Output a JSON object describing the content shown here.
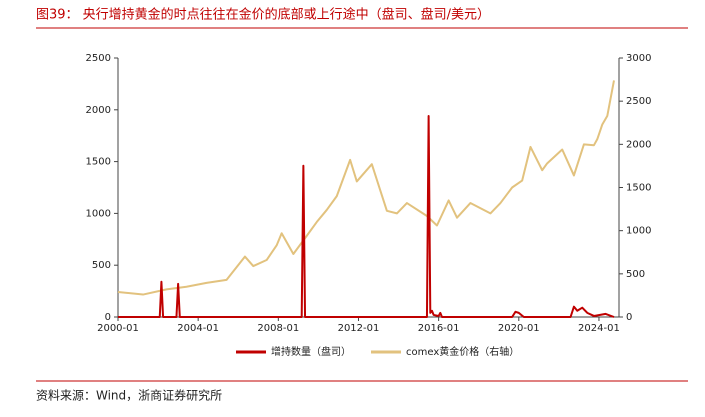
{
  "chart_data": {
    "type": "line",
    "title": "图39：  央行增持黄金的时点往往在金价的底部或上行途中（盘司、盘司/美元）",
    "source": "资料来源：Wind，浙商证券研究所",
    "xlim": [
      "2000-01",
      "2025-01"
    ],
    "xticks": [
      "2000-01",
      "2004-01",
      "2008-01",
      "2012-01",
      "2016-01",
      "2020-01",
      "2024-01"
    ],
    "ylim": [
      0,
      2500
    ],
    "yticks": [
      0,
      500,
      1000,
      1500,
      2000,
      2500
    ],
    "y2lim": [
      0,
      3000
    ],
    "y2ticks": [
      0,
      500,
      1000,
      1500,
      2000,
      2500,
      3000
    ],
    "legend": "bottom",
    "series": [
      {
        "name": "增持数量（盘司）",
        "color": "#c00000",
        "x": [
          "2000-01",
          "2002-02",
          "2002-03",
          "2002-04",
          "2002-12",
          "2003-01",
          "2003-02",
          "2009-03",
          "2009-04",
          "2009-05",
          "2015-06",
          "2015-07",
          "2015-08",
          "2015-09",
          "2015-10",
          "2016-01",
          "2016-02",
          "2016-03",
          "2019-09",
          "2019-11",
          "2020-01",
          "2020-04",
          "2022-08",
          "2022-10",
          "2022-12",
          "2023-03",
          "2023-06",
          "2023-10",
          "2024-05",
          "2024-10"
        ],
        "values": [
          0,
          0,
          340,
          0,
          0,
          320,
          0,
          0,
          1460,
          0,
          0,
          1940,
          40,
          60,
          20,
          10,
          40,
          0,
          0,
          50,
          40,
          0,
          0,
          100,
          60,
          90,
          40,
          10,
          30,
          0
        ]
      },
      {
        "name": "comex黄金价格（右轴）",
        "color": "#e2c27e",
        "axis": "y2",
        "x": [
          "2000-01",
          "2001-04",
          "2002-06",
          "2003-06",
          "2004-06",
          "2005-06",
          "2006-05",
          "2006-10",
          "2007-06",
          "2007-12",
          "2008-03",
          "2008-10",
          "2009-06",
          "2009-12",
          "2010-06",
          "2010-12",
          "2011-08",
          "2011-12",
          "2012-09",
          "2013-06",
          "2013-12",
          "2014-06",
          "2015-06",
          "2015-12",
          "2016-07",
          "2016-12",
          "2017-08",
          "2018-08",
          "2019-02",
          "2019-09",
          "2020-03",
          "2020-08",
          "2021-03",
          "2021-06",
          "2022-03",
          "2022-10",
          "2023-04",
          "2023-10",
          "2023-12",
          "2024-03",
          "2024-06",
          "2024-10"
        ],
        "values": [
          290,
          260,
          320,
          350,
          395,
          430,
          700,
          590,
          660,
          830,
          970,
          730,
          940,
          1100,
          1240,
          1400,
          1820,
          1570,
          1770,
          1230,
          1200,
          1320,
          1170,
          1060,
          1350,
          1150,
          1320,
          1200,
          1320,
          1500,
          1580,
          1970,
          1700,
          1780,
          1940,
          1640,
          2000,
          1990,
          2060,
          2230,
          2330,
          2740
        ]
      }
    ]
  }
}
